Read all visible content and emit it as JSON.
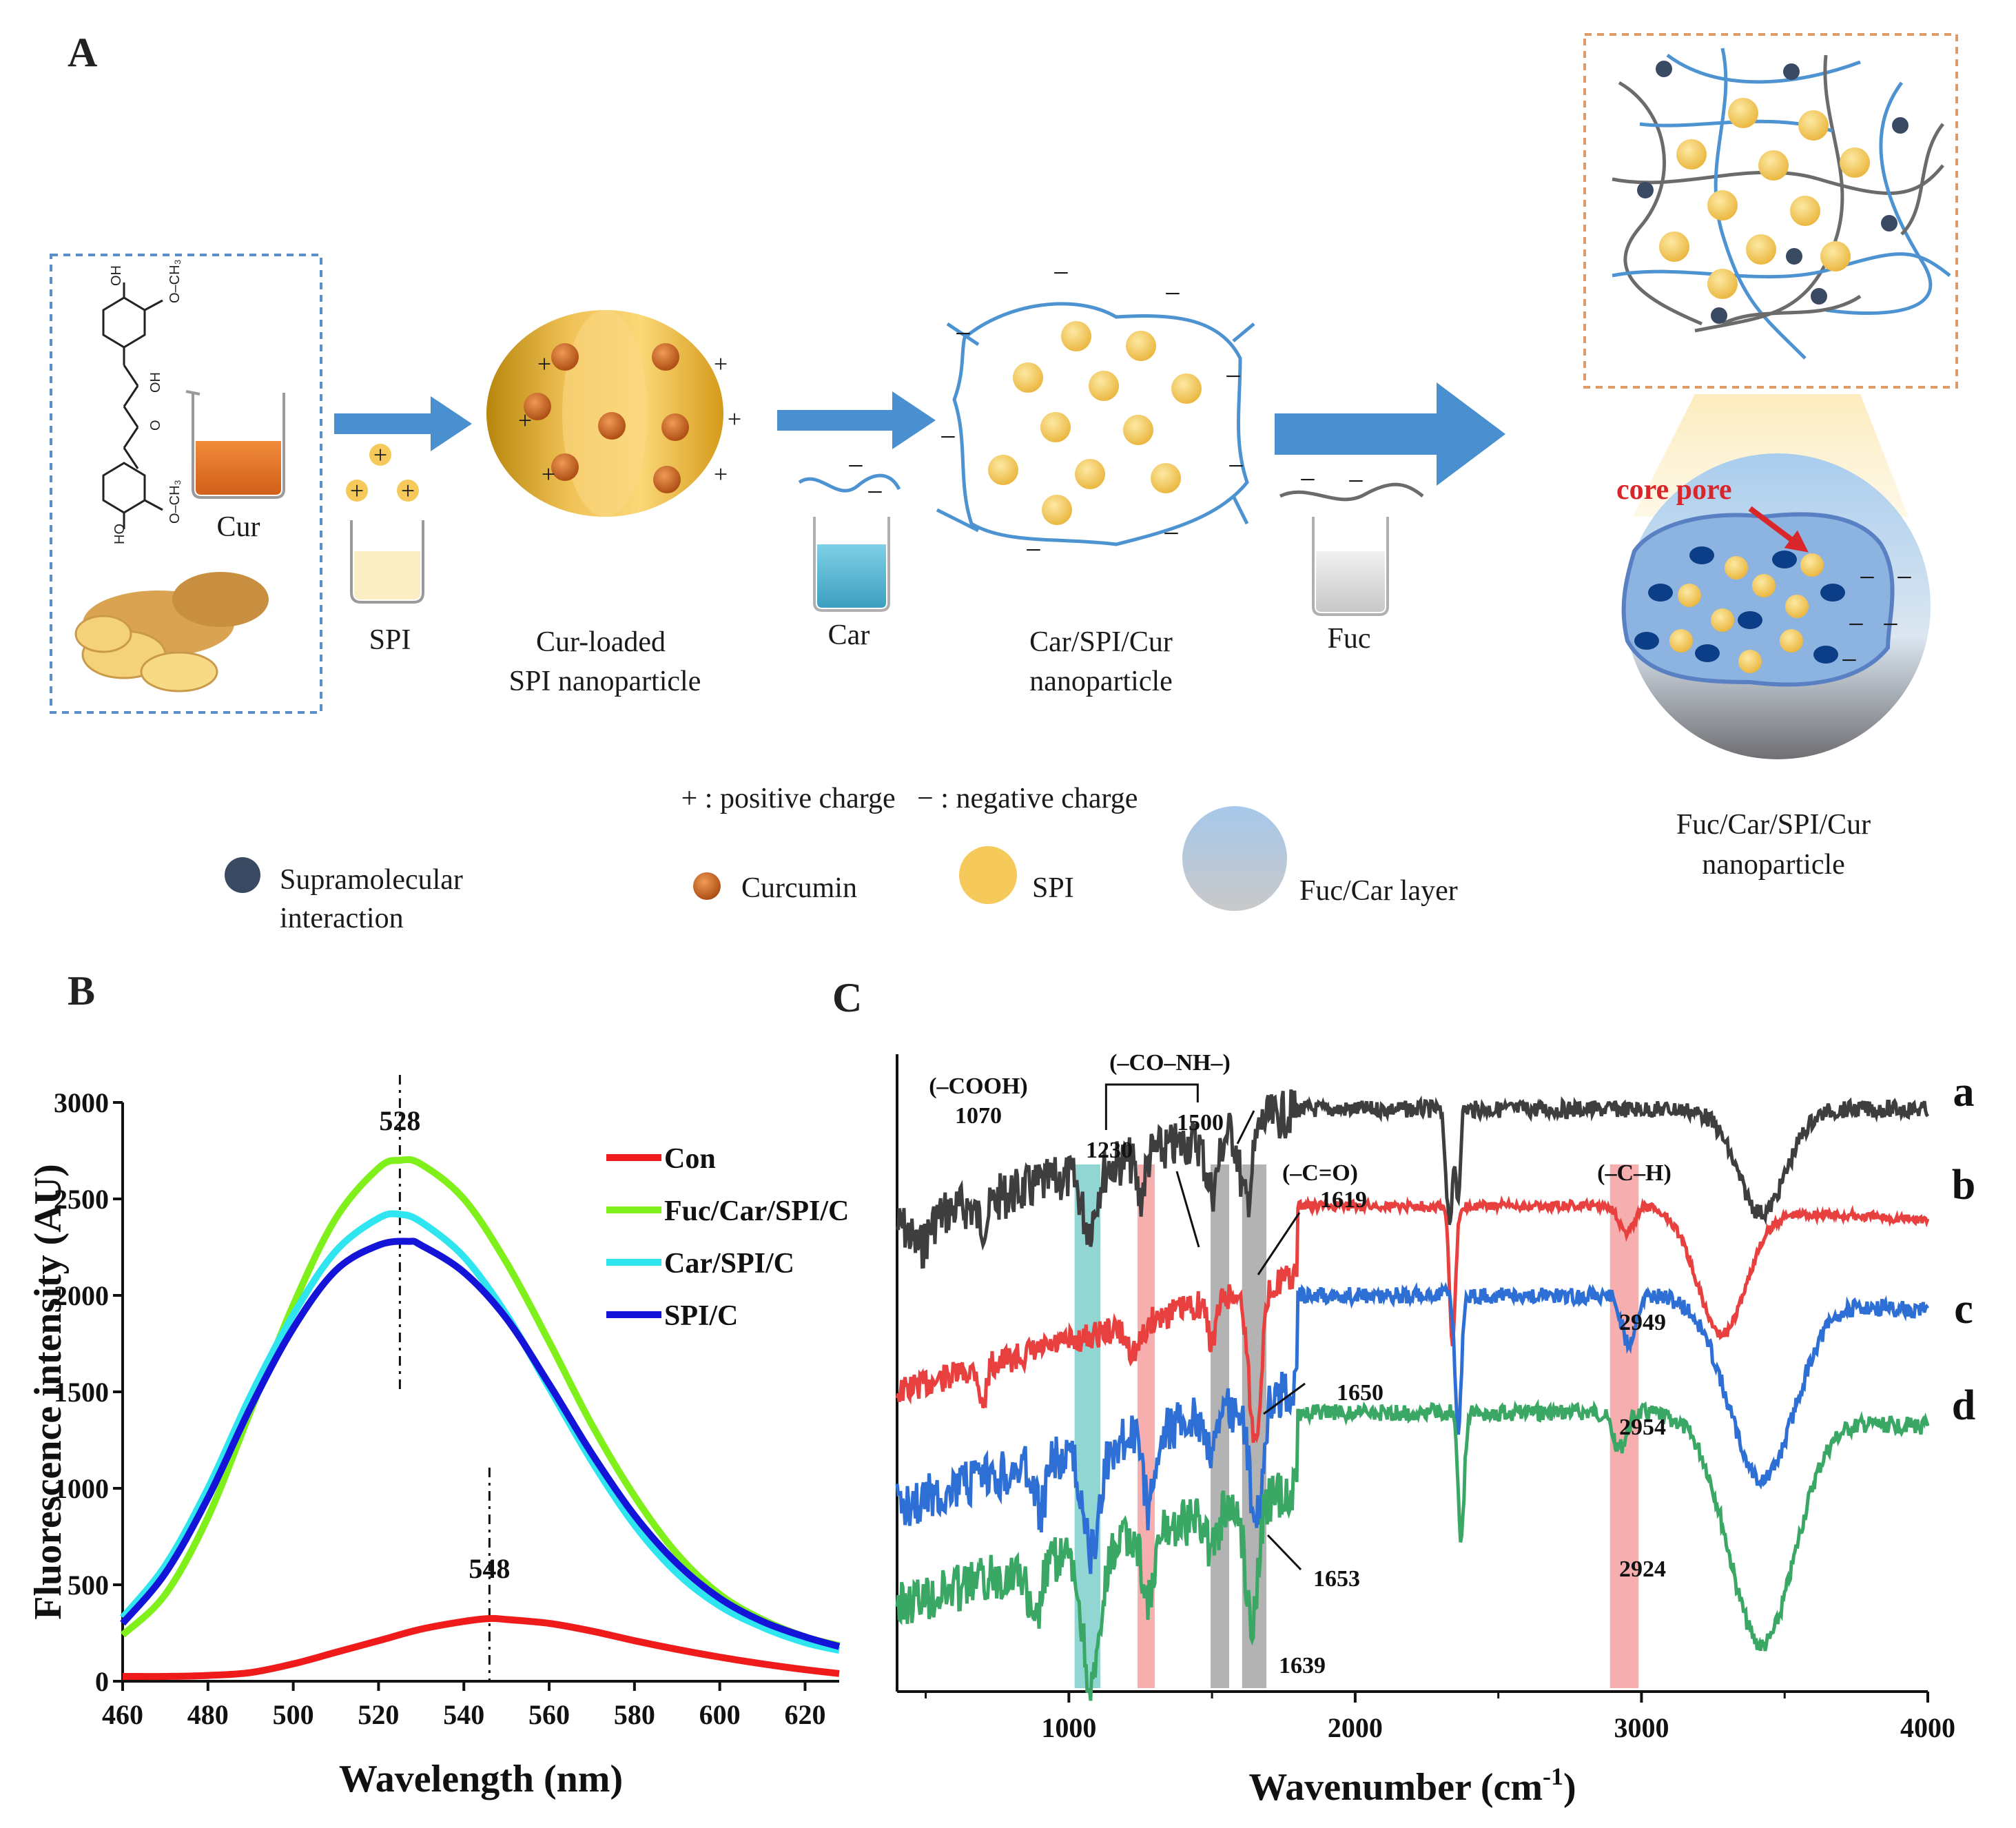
{
  "panels": {
    "A": {
      "letter": "A",
      "labels": {
        "cur": "Cur",
        "spi": "SPI",
        "cur_loaded_1": "Cur-loaded",
        "cur_loaded_2": "SPI nanoparticle",
        "car": "Car",
        "car_spi_1": "Car/SPI/Cur",
        "car_spi_2": "nanoparticle",
        "fuc": "Fuc",
        "core_pore": "core pore",
        "final_1": "Fuc/Car/SPI/Cur",
        "final_2": "nanoparticle",
        "charge_legend": "+ : positive charge   − : negative charge",
        "plus": "+",
        "minus": "−"
      },
      "legend": [
        {
          "label": "Supramolecular",
          "label2": "interaction",
          "color": "#3b4a63"
        },
        {
          "label": "Curcumin",
          "label2": "",
          "color": "#c9651f"
        },
        {
          "label": "SPI",
          "label2": "",
          "color": "#f5c95a"
        },
        {
          "label": "Fuc/Car layer",
          "label2": "",
          "color": "#9db4d4"
        }
      ],
      "colors": {
        "arrow": "#4a8fd0",
        "box_blue": "#5a8fc9",
        "box_orange": "#e09a6a",
        "fiber_blue": "#4d93d1",
        "fiber_gray": "#6b6b6b"
      }
    },
    "B": {
      "letter": "B",
      "chart_data": {
        "type": "line",
        "xlabel": "Wavelength (nm)",
        "ylabel": "Fluorescence intensity (AU)",
        "xlim": [
          460,
          628
        ],
        "ylim": [
          0,
          3000
        ],
        "xticks": [
          460,
          480,
          500,
          520,
          540,
          560,
          580,
          600,
          620
        ],
        "yticks": [
          0,
          500,
          1000,
          1500,
          2000,
          2500,
          3000
        ],
        "annotations": [
          {
            "text": "528",
            "x": 525
          },
          {
            "text": "548",
            "x": 546
          }
        ],
        "series": [
          {
            "name": "Con",
            "color": "#ef1b1b",
            "x": [
              460,
              470,
              480,
              490,
              500,
              510,
              520,
              530,
              540,
              546,
              550,
              560,
              570,
              580,
              590,
              600,
              610,
              620,
              628
            ],
            "y": [
              25,
              25,
              30,
              45,
              90,
              150,
              210,
              270,
              310,
              325,
              320,
              300,
              260,
              210,
              165,
              125,
              90,
              60,
              40
            ]
          },
          {
            "name": "Fuc/Car/SPI/C",
            "color": "#7ff01a",
            "x": [
              460,
              470,
              480,
              490,
              500,
              510,
              520,
              525,
              530,
              540,
              550,
              560,
              570,
              580,
              590,
              600,
              610,
              620,
              628
            ],
            "y": [
              240,
              450,
              850,
              1400,
              1950,
              2400,
              2660,
              2700,
              2680,
              2500,
              2170,
              1760,
              1330,
              960,
              660,
              450,
              320,
              230,
              185
            ]
          },
          {
            "name": "Car/SPI/C",
            "color": "#2fe6f0",
            "x": [
              460,
              470,
              480,
              490,
              500,
              510,
              520,
              525,
              530,
              540,
              550,
              560,
              570,
              580,
              590,
              600,
              610,
              620,
              628
            ],
            "y": [
              330,
              600,
              1000,
              1480,
              1900,
              2230,
              2400,
              2420,
              2380,
              2200,
              1900,
              1520,
              1140,
              810,
              560,
              390,
              280,
              200,
              160
            ]
          },
          {
            "name": "SPI/C",
            "color": "#1414d8",
            "x": [
              460,
              470,
              480,
              490,
              500,
              510,
              520,
              527,
              530,
              540,
              550,
              560,
              570,
              580,
              590,
              600,
              610,
              620,
              628
            ],
            "y": [
              300,
              560,
              950,
              1420,
              1830,
              2130,
              2260,
              2280,
              2260,
              2120,
              1880,
              1540,
              1180,
              860,
              610,
              430,
              310,
              230,
              180
            ]
          }
        ]
      }
    },
    "C": {
      "letter": "C",
      "chart_data": {
        "type": "line",
        "xlabel": "Wavenumber (cm⁻¹)",
        "xlabel_main": "Wavenumber (cm",
        "xlabel_sup": "-1",
        "xlabel_close": ")",
        "xlim": [
          400,
          4000
        ],
        "xticks": [
          1000,
          2000,
          3000,
          4000
        ],
        "bands": [
          {
            "from": 1020,
            "to": 1110,
            "color": "#7fcfcc"
          },
          {
            "from": 1240,
            "to": 1300,
            "color": "#f4a0a0"
          },
          {
            "from": 1495,
            "to": 1560,
            "color": "#a6a6a6"
          },
          {
            "from": 1605,
            "to": 1690,
            "color": "#a6a6a6"
          },
          {
            "from": 2890,
            "to": 2990,
            "color": "#f4a0a0"
          }
        ],
        "group_labels": [
          "(–COOH)",
          "(–CO–NH–)",
          "(–C=O)",
          "(–C–H)"
        ],
        "peak_labels": [
          "1070",
          "1230",
          "1500",
          "1619",
          "1650",
          "1653",
          "1639",
          "2949",
          "2954",
          "2924"
        ],
        "series": [
          {
            "name": "a",
            "color": "#3e3e3e"
          },
          {
            "name": "b",
            "color": "#e8403f"
          },
          {
            "name": "c",
            "color": "#2e6fd6"
          },
          {
            "name": "d",
            "color": "#3aa864"
          }
        ]
      }
    }
  }
}
